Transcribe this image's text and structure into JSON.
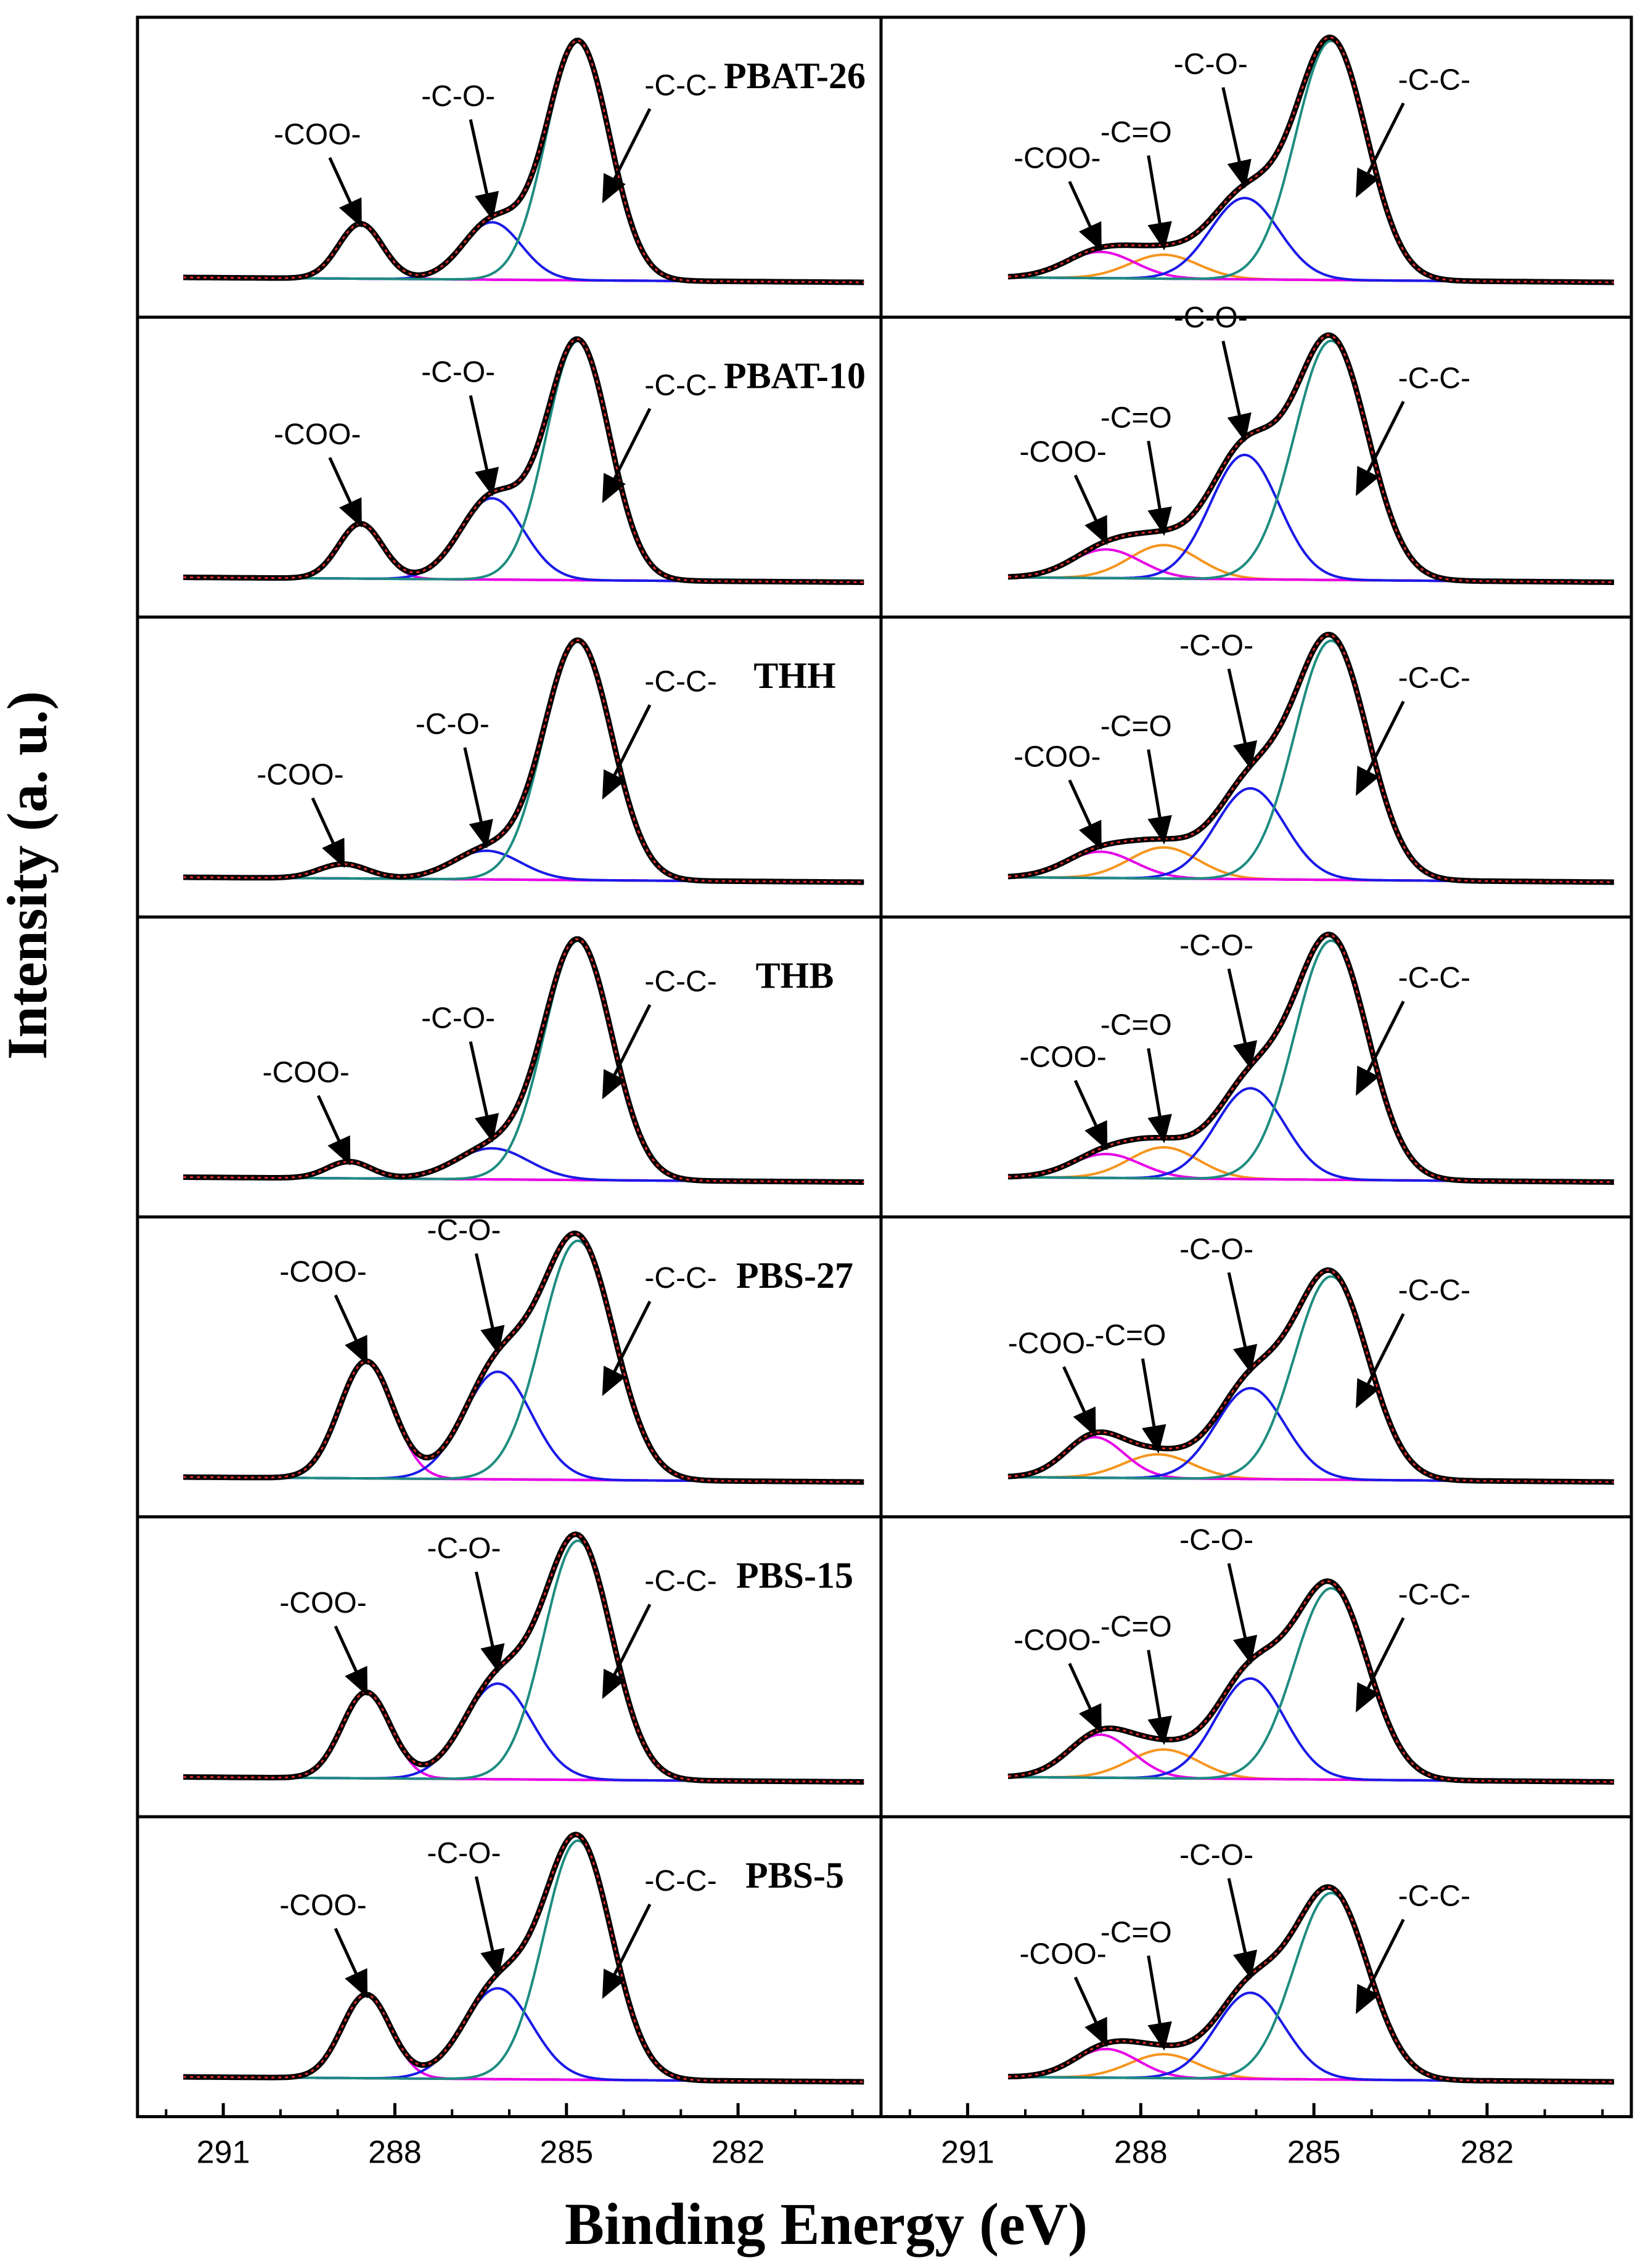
{
  "colors": {
    "frame": "#000000",
    "experimental": "#000000",
    "envelope_fit": "#e32d2d",
    "baseline": "#e600e6",
    "peak_CC": "#1d8c80",
    "peak_CO": "#1a1ae6",
    "peak_COO": "#e600e6",
    "peak_CeqO": "#f5951f"
  },
  "ylabel": "Intensity (a. u.)",
  "xlabel": "Binding Energy (eV)",
  "chart_data": [
    {
      "type": "line",
      "sample": "PBAT-26",
      "column": "left",
      "xlim": [
        292.5,
        279.5
      ],
      "xticks": [
        291,
        288,
        285,
        282
      ],
      "xlabel": "Binding Energy (eV)",
      "peaks": [
        {
          "label": "-C-C-",
          "center": 284.8,
          "height": 1.0,
          "fwhm": 1.3
        },
        {
          "label": "-C-O-",
          "center": 286.3,
          "height": 0.24,
          "fwhm": 1.2
        },
        {
          "label": "-COO-",
          "center": 288.6,
          "height": 0.23,
          "fwhm": 0.9
        }
      ]
    },
    {
      "type": "line",
      "sample": "PBAT-26",
      "column": "right",
      "xlim": [
        292.5,
        279.5
      ],
      "xticks": [
        291,
        288,
        285,
        282
      ],
      "xlabel": "Binding Energy (eV)",
      "peaks": [
        {
          "label": "-C-C-",
          "center": 284.7,
          "height": 1.0,
          "fwhm": 1.45
        },
        {
          "label": "-C-O-",
          "center": 286.2,
          "height": 0.34,
          "fwhm": 1.4
        },
        {
          "label": "-C=O",
          "center": 287.6,
          "height": 0.1,
          "fwhm": 1.4
        },
        {
          "label": "-COO-",
          "center": 288.7,
          "height": 0.11,
          "fwhm": 1.4
        }
      ]
    },
    {
      "type": "line",
      "sample": "PBAT-10",
      "column": "left",
      "xlim": [
        292.5,
        279.5
      ],
      "xticks": [
        291,
        288,
        285,
        282
      ],
      "xlabel": "Binding Energy (eV)",
      "peaks": [
        {
          "label": "-C-C-",
          "center": 284.8,
          "height": 1.0,
          "fwhm": 1.3
        },
        {
          "label": "-C-O-",
          "center": 286.3,
          "height": 0.34,
          "fwhm": 1.3
        },
        {
          "label": "-COO-",
          "center": 288.6,
          "height": 0.23,
          "fwhm": 0.9
        }
      ]
    },
    {
      "type": "line",
      "sample": "PBAT-10",
      "column": "right",
      "xlim": [
        292.5,
        279.5
      ],
      "xticks": [
        291,
        288,
        285,
        282
      ],
      "xlabel": "Binding Energy (eV)",
      "peaks": [
        {
          "label": "-C-C-",
          "center": 284.7,
          "height": 1.0,
          "fwhm": 1.5
        },
        {
          "label": "-C-O-",
          "center": 286.2,
          "height": 0.52,
          "fwhm": 1.4
        },
        {
          "label": "-C=O",
          "center": 287.6,
          "height": 0.14,
          "fwhm": 1.4
        },
        {
          "label": "-COO-",
          "center": 288.6,
          "height": 0.12,
          "fwhm": 1.4
        }
      ]
    },
    {
      "type": "line",
      "sample": "THH",
      "column": "left",
      "xlim": [
        292.5,
        279.5
      ],
      "xticks": [
        291,
        288,
        285,
        282
      ],
      "xlabel": "Binding Energy (eV)",
      "peaks": [
        {
          "label": "-C-C-",
          "center": 284.8,
          "height": 1.0,
          "fwhm": 1.4
        },
        {
          "label": "-C-O-",
          "center": 286.4,
          "height": 0.12,
          "fwhm": 1.4
        },
        {
          "label": "-COO-",
          "center": 288.9,
          "height": 0.06,
          "fwhm": 1.0
        }
      ]
    },
    {
      "type": "line",
      "sample": "THH",
      "column": "right",
      "xlim": [
        292.5,
        279.5
      ],
      "xticks": [
        291,
        288,
        285,
        282
      ],
      "xlabel": "Binding Energy (eV)",
      "peaks": [
        {
          "label": "-C-C-",
          "center": 284.7,
          "height": 1.0,
          "fwhm": 1.5
        },
        {
          "label": "-C-O-",
          "center": 286.1,
          "height": 0.38,
          "fwhm": 1.4
        },
        {
          "label": "-C=O",
          "center": 287.6,
          "height": 0.13,
          "fwhm": 1.4
        },
        {
          "label": "-COO-",
          "center": 288.7,
          "height": 0.11,
          "fwhm": 1.4
        }
      ]
    },
    {
      "type": "line",
      "sample": "THB",
      "column": "left",
      "xlim": [
        292.5,
        279.5
      ],
      "xticks": [
        291,
        288,
        285,
        282
      ],
      "xlabel": "Binding Energy (eV)",
      "peaks": [
        {
          "label": "-C-C-",
          "center": 284.8,
          "height": 1.0,
          "fwhm": 1.4
        },
        {
          "label": "-C-O-",
          "center": 286.3,
          "height": 0.13,
          "fwhm": 1.5
        },
        {
          "label": "-COO-",
          "center": 288.8,
          "height": 0.07,
          "fwhm": 0.9
        }
      ]
    },
    {
      "type": "line",
      "sample": "THB",
      "column": "right",
      "xlim": [
        292.5,
        279.5
      ],
      "xticks": [
        291,
        288,
        285,
        282
      ],
      "xlabel": "Binding Energy (eV)",
      "peaks": [
        {
          "label": "-C-C-",
          "center": 284.7,
          "height": 1.0,
          "fwhm": 1.5
        },
        {
          "label": "-C-O-",
          "center": 286.1,
          "height": 0.38,
          "fwhm": 1.4
        },
        {
          "label": "-C=O",
          "center": 287.6,
          "height": 0.13,
          "fwhm": 1.4
        },
        {
          "label": "-COO-",
          "center": 288.6,
          "height": 0.1,
          "fwhm": 1.4
        }
      ]
    },
    {
      "type": "line",
      "sample": "PBS-27",
      "column": "left",
      "xlim": [
        292.5,
        279.5
      ],
      "xticks": [
        291,
        288,
        285,
        282
      ],
      "xlabel": "Binding Energy (eV)",
      "peaks": [
        {
          "label": "-C-C-",
          "center": 284.8,
          "height": 1.0,
          "fwhm": 1.5
        },
        {
          "label": "-C-O-",
          "center": 286.2,
          "height": 0.45,
          "fwhm": 1.4
        },
        {
          "label": "-COO-",
          "center": 288.5,
          "height": 0.49,
          "fwhm": 1.1
        }
      ]
    },
    {
      "type": "line",
      "sample": "PBS-27",
      "column": "right",
      "xlim": [
        292.5,
        279.5
      ],
      "xticks": [
        291,
        288,
        285,
        282
      ],
      "xlabel": "Binding Energy (eV)",
      "peaks": [
        {
          "label": "-C-C-",
          "center": 284.7,
          "height": 0.85,
          "fwhm": 1.5
        },
        {
          "label": "-C-O-",
          "center": 286.1,
          "height": 0.38,
          "fwhm": 1.4
        },
        {
          "label": "-C=O",
          "center": 287.7,
          "height": 0.1,
          "fwhm": 1.4
        },
        {
          "label": "-COO-",
          "center": 288.8,
          "height": 0.17,
          "fwhm": 1.2
        }
      ]
    },
    {
      "type": "line",
      "sample": "PBS-15",
      "column": "left",
      "xlim": [
        292.5,
        279.5
      ],
      "xticks": [
        291,
        288,
        285,
        282
      ],
      "xlabel": "Binding Energy (eV)",
      "peaks": [
        {
          "label": "-C-C-",
          "center": 284.8,
          "height": 1.0,
          "fwhm": 1.4
        },
        {
          "label": "-C-O-",
          "center": 286.2,
          "height": 0.4,
          "fwhm": 1.4
        },
        {
          "label": "-COO-",
          "center": 288.5,
          "height": 0.36,
          "fwhm": 1.0
        }
      ]
    },
    {
      "type": "line",
      "sample": "PBS-15",
      "column": "right",
      "xlim": [
        292.5,
        279.5
      ],
      "xticks": [
        291,
        288,
        285,
        282
      ],
      "xlabel": "Binding Energy (eV)",
      "peaks": [
        {
          "label": "-C-C-",
          "center": 284.7,
          "height": 0.8,
          "fwhm": 1.5
        },
        {
          "label": "-C-O-",
          "center": 286.1,
          "height": 0.42,
          "fwhm": 1.4
        },
        {
          "label": "-C=O",
          "center": 287.6,
          "height": 0.12,
          "fwhm": 1.4
        },
        {
          "label": "-COO-",
          "center": 288.7,
          "height": 0.18,
          "fwhm": 1.3
        }
      ]
    },
    {
      "type": "line",
      "sample": "PBS-5",
      "column": "left",
      "xlim": [
        292.5,
        279.5
      ],
      "xticks": [
        291,
        288,
        285,
        282
      ],
      "xlabel": "Binding Energy (eV)",
      "peaks": [
        {
          "label": "-C-C-",
          "center": 284.8,
          "height": 1.0,
          "fwhm": 1.4
        },
        {
          "label": "-C-O-",
          "center": 286.2,
          "height": 0.38,
          "fwhm": 1.4
        },
        {
          "label": "-COO-",
          "center": 288.5,
          "height": 0.35,
          "fwhm": 1.0
        }
      ]
    },
    {
      "type": "line",
      "sample": "PBS-5",
      "column": "right",
      "xlim": [
        292.5,
        279.5
      ],
      "xticks": [
        291,
        288,
        285,
        282
      ],
      "xlabel": "Binding Energy (eV)",
      "peaks": [
        {
          "label": "-C-C-",
          "center": 284.7,
          "height": 0.78,
          "fwhm": 1.5
        },
        {
          "label": "-C-O-",
          "center": 286.1,
          "height": 0.36,
          "fwhm": 1.4
        },
        {
          "label": "-C=O",
          "center": 287.6,
          "height": 0.1,
          "fwhm": 1.4
        },
        {
          "label": "-COO-",
          "center": 288.6,
          "height": 0.12,
          "fwhm": 1.3
        }
      ]
    }
  ]
}
